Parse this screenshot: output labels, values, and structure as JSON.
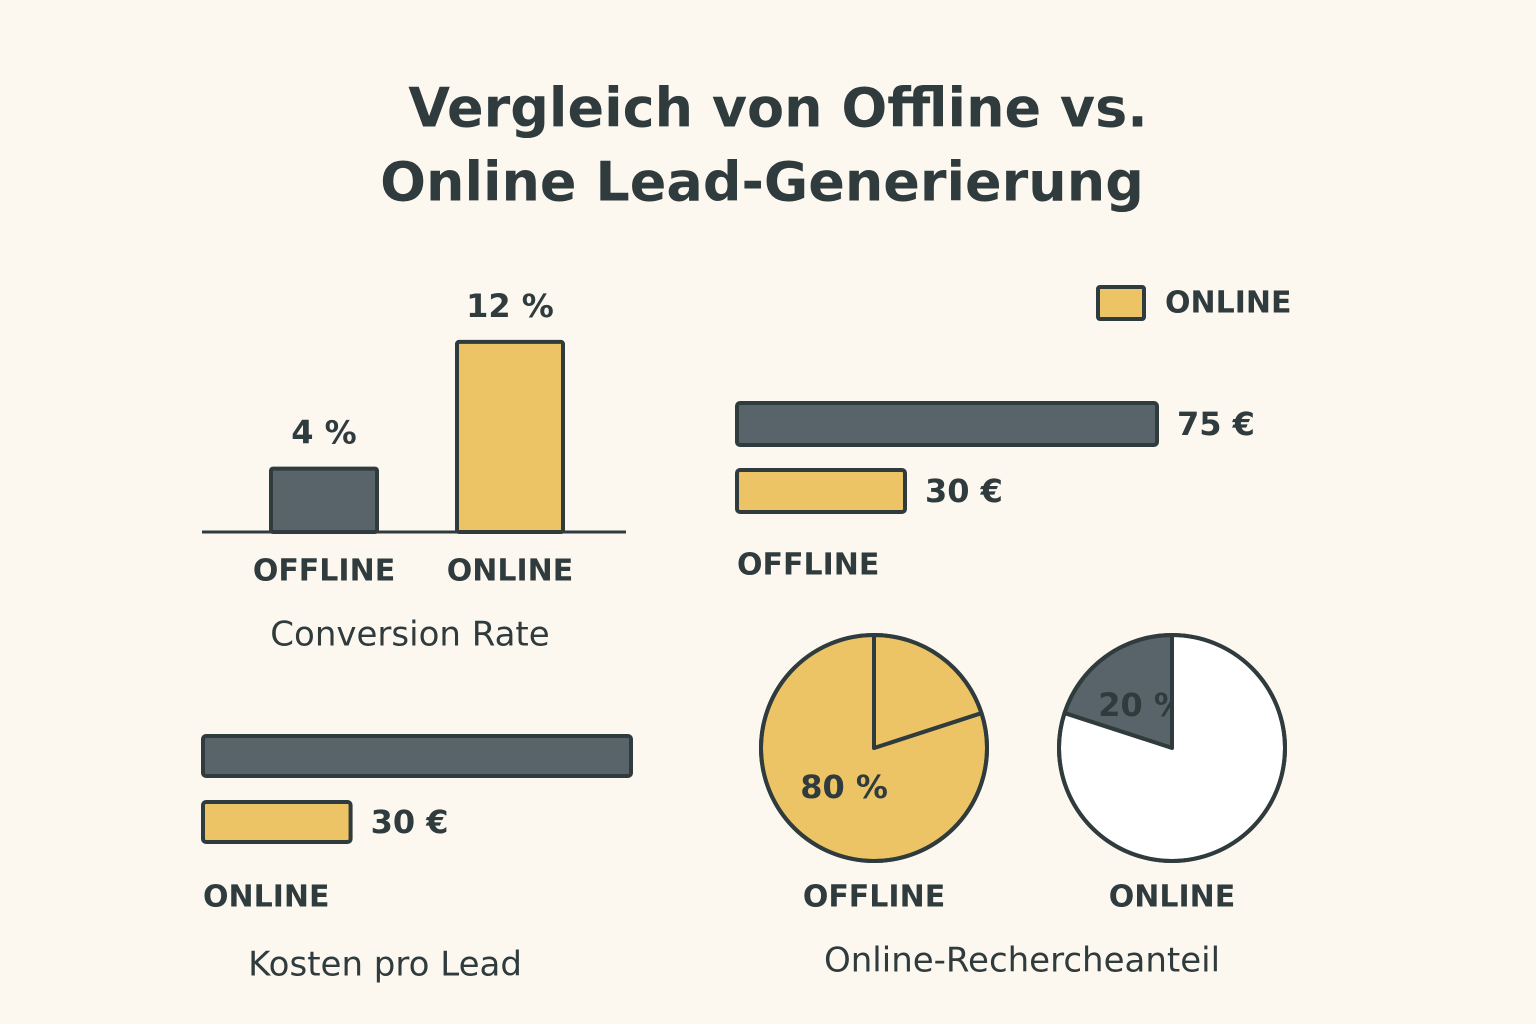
{
  "title": [
    "Vergleich von Offline vs.",
    "Online Lead-Generierung"
  ],
  "chart_data": [
    {
      "type": "bar",
      "title": "Conversion Rate",
      "categories": [
        "OFFLINE",
        "ONLINE"
      ],
      "values": [
        4,
        12
      ],
      "value_labels": [
        "4 %",
        "12 %"
      ],
      "colors": [
        "#59636a",
        "#edc465"
      ],
      "ylim": [
        0,
        12.5
      ]
    },
    {
      "type": "hbar",
      "group_label": "OFFLINE",
      "values": [
        75,
        30
      ],
      "value_labels": [
        "75 €",
        "30 €"
      ],
      "colors": [
        "#59636a",
        "#edc465"
      ],
      "xlim": [
        0,
        75
      ],
      "legend": {
        "label": "ONLINE",
        "color": "#edc465"
      }
    },
    {
      "type": "hbar",
      "title": "Kosten pro Lead",
      "group_label": "ONLINE",
      "values": [
        87,
        30
      ],
      "value_labels": [
        null,
        "30 €"
      ],
      "colors": [
        "#59636a",
        "#edc465"
      ],
      "xlim": [
        0,
        87
      ]
    },
    {
      "type": "pie",
      "title": "Online-Rechercheanteil",
      "pies": [
        {
          "label": "OFFLINE",
          "values": [
            80,
            20
          ],
          "value_labels": [
            "80 %",
            null
          ],
          "colors": [
            "#edc465",
            "#edc465"
          ]
        },
        {
          "label": "ONLINE",
          "values": [
            20,
            80
          ],
          "value_labels": [
            "20 %",
            null
          ],
          "colors": [
            "#59636a",
            "#ffffff"
          ]
        }
      ]
    }
  ]
}
